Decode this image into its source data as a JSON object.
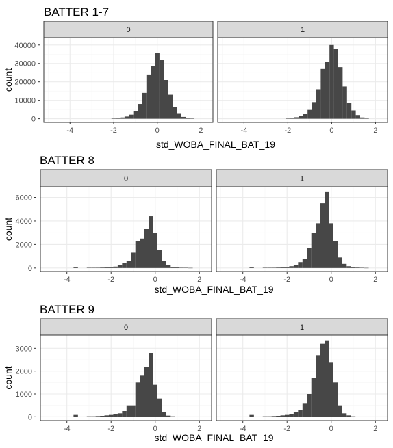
{
  "chart_data": [
    {
      "type": "bar",
      "title": "BATTER 1-7",
      "xlabel": "std_WOBA_FINAL_BAT_19",
      "ylabel": "count",
      "xlim": [
        -5.2,
        2.55
      ],
      "ylim": [
        -2000,
        44000
      ],
      "x_ticks": [
        -4,
        -2,
        0,
        2
      ],
      "x_tick_labels": [
        "-4",
        "-2",
        "0",
        "2"
      ],
      "y_ticks": [
        0,
        10000,
        20000,
        30000,
        40000
      ],
      "y_tick_labels": [
        "0",
        "10000",
        "20000",
        "30000",
        "40000"
      ],
      "grid": true,
      "panels": [
        {
          "label": "0",
          "bins": [
            {
              "x": -2.0,
              "y": 200
            },
            {
              "x": -1.8,
              "y": 400
            },
            {
              "x": -1.6,
              "y": 700
            },
            {
              "x": -1.4,
              "y": 1200
            },
            {
              "x": -1.2,
              "y": 2200
            },
            {
              "x": -1.0,
              "y": 4200
            },
            {
              "x": -0.8,
              "y": 8000
            },
            {
              "x": -0.6,
              "y": 14000
            },
            {
              "x": -0.4,
              "y": 24000
            },
            {
              "x": -0.2,
              "y": 28500
            },
            {
              "x": 0.0,
              "y": 35500
            },
            {
              "x": 0.2,
              "y": 32000
            },
            {
              "x": 0.4,
              "y": 21000
            },
            {
              "x": 0.6,
              "y": 13000
            },
            {
              "x": 0.8,
              "y": 6500
            },
            {
              "x": 1.0,
              "y": 3000
            },
            {
              "x": 1.2,
              "y": 1000
            },
            {
              "x": 1.4,
              "y": 300
            },
            {
              "x": 1.6,
              "y": 100
            }
          ]
        },
        {
          "label": "1",
          "bins": [
            {
              "x": -2.0,
              "y": 200
            },
            {
              "x": -1.8,
              "y": 400
            },
            {
              "x": -1.6,
              "y": 800
            },
            {
              "x": -1.4,
              "y": 1400
            },
            {
              "x": -1.2,
              "y": 2500
            },
            {
              "x": -1.0,
              "y": 4800
            },
            {
              "x": -0.8,
              "y": 9000
            },
            {
              "x": -0.6,
              "y": 16000
            },
            {
              "x": -0.4,
              "y": 27000
            },
            {
              "x": -0.2,
              "y": 31000
            },
            {
              "x": 0.0,
              "y": 40000
            },
            {
              "x": 0.2,
              "y": 38000
            },
            {
              "x": 0.4,
              "y": 28000
            },
            {
              "x": 0.6,
              "y": 17500
            },
            {
              "x": 0.8,
              "y": 8500
            },
            {
              "x": 1.0,
              "y": 4500
            },
            {
              "x": 1.2,
              "y": 2000
            },
            {
              "x": 1.4,
              "y": 700
            },
            {
              "x": 1.6,
              "y": 200
            }
          ]
        }
      ]
    },
    {
      "type": "bar",
      "title": "BATTER 8",
      "xlabel": "std_WOBA_FINAL_BAT_19",
      "ylabel": "count",
      "xlim": [
        -5.2,
        2.55
      ],
      "ylim": [
        -300,
        6900
      ],
      "x_ticks": [
        -4,
        -2,
        0,
        2
      ],
      "x_tick_labels": [
        "-4",
        "-2",
        "0",
        "2"
      ],
      "y_ticks": [
        0,
        2000,
        4000,
        6000
      ],
      "y_tick_labels": [
        "0",
        "2000",
        "4000",
        "6000"
      ],
      "grid": true,
      "panels": [
        {
          "label": "0",
          "bins": [
            {
              "x": -3.6,
              "y": 60
            },
            {
              "x": -3.0,
              "y": 20
            },
            {
              "x": -2.8,
              "y": 20
            },
            {
              "x": -2.6,
              "y": 30
            },
            {
              "x": -2.4,
              "y": 40
            },
            {
              "x": -2.2,
              "y": 60
            },
            {
              "x": -2.0,
              "y": 80
            },
            {
              "x": -1.8,
              "y": 120
            },
            {
              "x": -1.6,
              "y": 230
            },
            {
              "x": -1.4,
              "y": 400
            },
            {
              "x": -1.2,
              "y": 600
            },
            {
              "x": -1.0,
              "y": 1300
            },
            {
              "x": -0.8,
              "y": 2300
            },
            {
              "x": -0.6,
              "y": 2500
            },
            {
              "x": -0.4,
              "y": 3300
            },
            {
              "x": -0.2,
              "y": 4400
            },
            {
              "x": 0.0,
              "y": 3000
            },
            {
              "x": 0.2,
              "y": 1500
            },
            {
              "x": 0.4,
              "y": 600
            },
            {
              "x": 0.6,
              "y": 250
            },
            {
              "x": 0.8,
              "y": 100
            },
            {
              "x": 1.0,
              "y": 50
            },
            {
              "x": 1.2,
              "y": 30
            },
            {
              "x": 1.4,
              "y": 20
            },
            {
              "x": 1.6,
              "y": 10
            }
          ]
        },
        {
          "label": "1",
          "bins": [
            {
              "x": -3.6,
              "y": 60
            },
            {
              "x": -3.0,
              "y": 20
            },
            {
              "x": -2.8,
              "y": 20
            },
            {
              "x": -2.6,
              "y": 30
            },
            {
              "x": -2.4,
              "y": 40
            },
            {
              "x": -2.2,
              "y": 60
            },
            {
              "x": -2.0,
              "y": 100
            },
            {
              "x": -1.8,
              "y": 150
            },
            {
              "x": -1.6,
              "y": 280
            },
            {
              "x": -1.4,
              "y": 500
            },
            {
              "x": -1.2,
              "y": 800
            },
            {
              "x": -1.0,
              "y": 1700
            },
            {
              "x": -0.8,
              "y": 3000
            },
            {
              "x": -0.6,
              "y": 3800
            },
            {
              "x": -0.4,
              "y": 5500
            },
            {
              "x": -0.2,
              "y": 6500
            },
            {
              "x": 0.0,
              "y": 3800
            },
            {
              "x": 0.2,
              "y": 2300
            },
            {
              "x": 0.4,
              "y": 900
            },
            {
              "x": 0.6,
              "y": 350
            },
            {
              "x": 0.8,
              "y": 150
            },
            {
              "x": 1.0,
              "y": 70
            },
            {
              "x": 1.2,
              "y": 40
            },
            {
              "x": 1.4,
              "y": 20
            },
            {
              "x": 1.6,
              "y": 10
            }
          ]
        }
      ]
    },
    {
      "type": "bar",
      "title": "BATTER 9",
      "xlabel": "std_WOBA_FINAL_BAT_19",
      "ylabel": "count",
      "xlim": [
        -5.2,
        2.55
      ],
      "ylim": [
        -170,
        3580
      ],
      "x_ticks": [
        -4,
        -2,
        0,
        2
      ],
      "x_tick_labels": [
        "-4",
        "-2",
        "0",
        "2"
      ],
      "y_ticks": [
        0,
        1000,
        2000,
        3000
      ],
      "y_tick_labels": [
        "0",
        "1000",
        "2000",
        "3000"
      ],
      "grid": true,
      "panels": [
        {
          "label": "0",
          "bins": [
            {
              "x": -3.6,
              "y": 80
            },
            {
              "x": -3.0,
              "y": 20
            },
            {
              "x": -2.8,
              "y": 20
            },
            {
              "x": -2.6,
              "y": 30
            },
            {
              "x": -2.4,
              "y": 40
            },
            {
              "x": -2.2,
              "y": 60
            },
            {
              "x": -2.0,
              "y": 80
            },
            {
              "x": -1.8,
              "y": 100
            },
            {
              "x": -1.6,
              "y": 150
            },
            {
              "x": -1.4,
              "y": 250
            },
            {
              "x": -1.2,
              "y": 500
            },
            {
              "x": -1.0,
              "y": 500
            },
            {
              "x": -0.8,
              "y": 1500
            },
            {
              "x": -0.6,
              "y": 1800
            },
            {
              "x": -0.4,
              "y": 2200
            },
            {
              "x": -0.2,
              "y": 2800
            },
            {
              "x": 0.0,
              "y": 1400
            },
            {
              "x": 0.2,
              "y": 800
            },
            {
              "x": 0.4,
              "y": 200
            },
            {
              "x": 0.6,
              "y": 50
            },
            {
              "x": 0.8,
              "y": 20
            },
            {
              "x": 1.0,
              "y": 10
            },
            {
              "x": 1.2,
              "y": 10
            },
            {
              "x": 1.4,
              "y": 5
            },
            {
              "x": 1.6,
              "y": 5
            }
          ]
        },
        {
          "label": "1",
          "bins": [
            {
              "x": -3.6,
              "y": 80
            },
            {
              "x": -3.0,
              "y": 20
            },
            {
              "x": -2.8,
              "y": 20
            },
            {
              "x": -2.6,
              "y": 30
            },
            {
              "x": -2.4,
              "y": 40
            },
            {
              "x": -2.2,
              "y": 60
            },
            {
              "x": -2.0,
              "y": 80
            },
            {
              "x": -1.8,
              "y": 120
            },
            {
              "x": -1.6,
              "y": 200
            },
            {
              "x": -1.4,
              "y": 300
            },
            {
              "x": -1.2,
              "y": 600
            },
            {
              "x": -1.0,
              "y": 1000
            },
            {
              "x": -0.8,
              "y": 1700
            },
            {
              "x": -0.6,
              "y": 2700
            },
            {
              "x": -0.4,
              "y": 3200
            },
            {
              "x": -0.2,
              "y": 3350
            },
            {
              "x": 0.0,
              "y": 2400
            },
            {
              "x": 0.2,
              "y": 1500
            },
            {
              "x": 0.4,
              "y": 500
            },
            {
              "x": 0.6,
              "y": 150
            },
            {
              "x": 0.8,
              "y": 60
            },
            {
              "x": 1.0,
              "y": 20
            },
            {
              "x": 1.2,
              "y": 10
            },
            {
              "x": 1.4,
              "y": 5
            },
            {
              "x": 1.6,
              "y": 5
            }
          ]
        }
      ]
    }
  ],
  "colors": {
    "bar": "#474747",
    "panel_border": "#333333",
    "strip_fill": "#d9d9d9",
    "grid_major": "#ebebeb",
    "grid_minor": "#f5f5f5",
    "tick_text": "#4d4d4d",
    "title_text": "#000000"
  }
}
